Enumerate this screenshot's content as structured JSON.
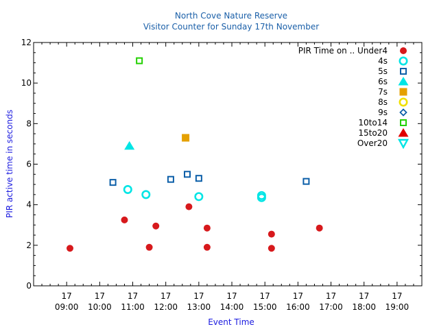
{
  "chart_data": {
    "type": "scatter",
    "title": "North Cove Nature Reserve",
    "subtitle": "Visitor Counter for Sunday 17th November",
    "xlabel": "Event Time",
    "ylabel": "PIR active time in seconds",
    "x_unit": "hours of 17 November",
    "xlim": [
      8.0,
      19.75
    ],
    "ylim": [
      0,
      12
    ],
    "x_ticks": [
      {
        "x": 9,
        "day": "17",
        "time": "09:00"
      },
      {
        "x": 10,
        "day": "17",
        "time": "10:00"
      },
      {
        "x": 11,
        "day": "17",
        "time": "11:00"
      },
      {
        "x": 12,
        "day": "17",
        "time": "12:00"
      },
      {
        "x": 13,
        "day": "17",
        "time": "13:00"
      },
      {
        "x": 14,
        "day": "17",
        "time": "14:00"
      },
      {
        "x": 15,
        "day": "17",
        "time": "15:00"
      },
      {
        "x": 16,
        "day": "17",
        "time": "16:00"
      },
      {
        "x": 17,
        "day": "17",
        "time": "17:00"
      },
      {
        "x": 18,
        "day": "17",
        "time": "18:00"
      },
      {
        "x": 19,
        "day": "17",
        "time": "19:00"
      }
    ],
    "y_ticks": [
      0,
      2,
      4,
      6,
      8,
      10,
      12
    ],
    "grid": false,
    "legend_position": "top-right",
    "legend_title": "PIR Time on ..",
    "series": [
      {
        "name": "Under4",
        "marker": "filled-circle",
        "color": "#d7191c",
        "points": [
          [
            9.1,
            1.85
          ],
          [
            10.75,
            3.25
          ],
          [
            11.5,
            1.9
          ],
          [
            11.7,
            2.95
          ],
          [
            12.7,
            3.9
          ],
          [
            13.25,
            2.85
          ],
          [
            13.25,
            1.9
          ],
          [
            15.2,
            2.55
          ],
          [
            15.2,
            1.85
          ],
          [
            16.65,
            2.85
          ]
        ]
      },
      {
        "name": "4s",
        "marker": "open-circle",
        "color": "#00e5e5",
        "points": [
          [
            10.85,
            4.75
          ],
          [
            11.4,
            4.5
          ],
          [
            13.0,
            4.4
          ],
          [
            14.9,
            4.45
          ],
          [
            14.9,
            4.35
          ]
        ]
      },
      {
        "name": "5s",
        "marker": "open-square",
        "color": "#0b5ea8",
        "points": [
          [
            10.4,
            5.1
          ],
          [
            12.15,
            5.25
          ],
          [
            12.65,
            5.5
          ],
          [
            13.0,
            5.3
          ],
          [
            16.25,
            5.15
          ]
        ]
      },
      {
        "name": "6s",
        "marker": "filled-triangle-up",
        "color": "#00e5e5",
        "points": [
          [
            10.9,
            6.9
          ]
        ]
      },
      {
        "name": "7s",
        "marker": "filled-square",
        "color": "#e5a000",
        "points": [
          [
            12.6,
            7.3
          ]
        ]
      },
      {
        "name": "8s",
        "marker": "open-circle",
        "color": "#f0e000",
        "points": []
      },
      {
        "name": "9s",
        "marker": "open-diamond",
        "color": "#0b5ea8",
        "points": []
      },
      {
        "name": "10to14",
        "marker": "open-square",
        "color": "#22d000",
        "points": [
          [
            11.2,
            11.1
          ]
        ]
      },
      {
        "name": "15to20",
        "marker": "filled-triangle-up",
        "color": "#e00000",
        "points": []
      },
      {
        "name": "Over20",
        "marker": "open-triangle-down",
        "color": "#00e5e5",
        "points": []
      }
    ]
  }
}
